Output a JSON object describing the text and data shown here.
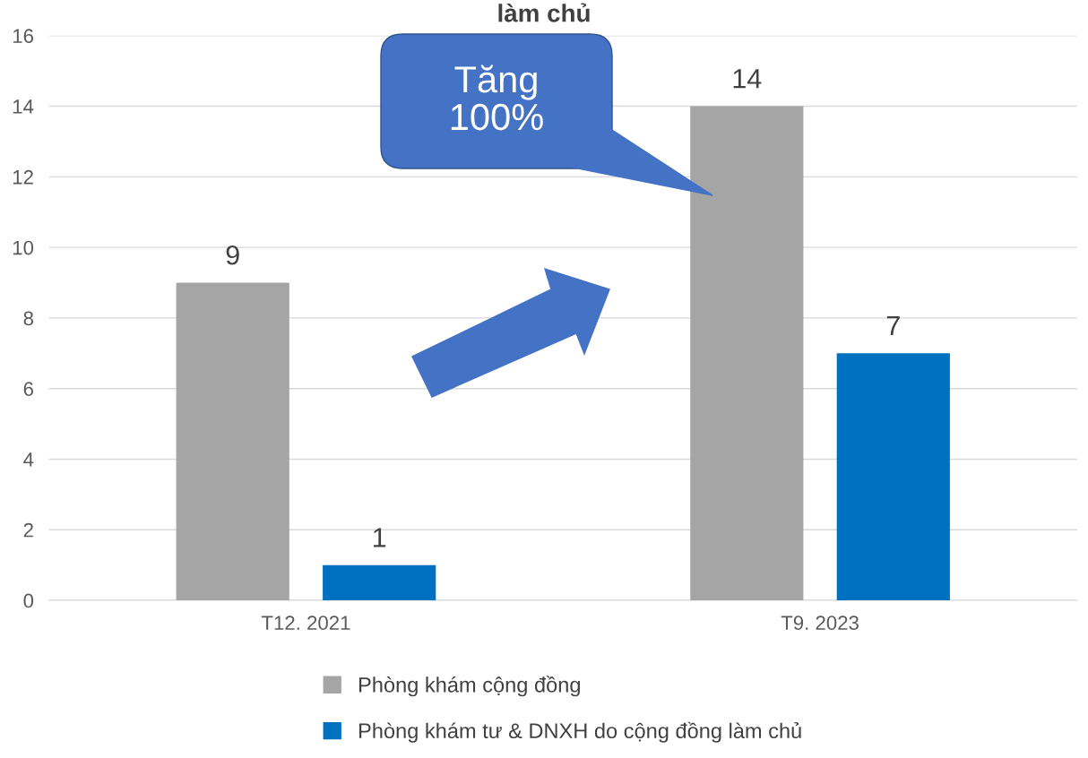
{
  "chart_data": {
    "type": "bar",
    "title": "làm chủ",
    "categories": [
      "T12. 2021",
      "T9. 2023"
    ],
    "series": [
      {
        "name": "Phòng khám cộng đồng",
        "color": "#a5a5a5",
        "values": [
          9,
          14
        ]
      },
      {
        "name": "Phòng khám tư & DNXH do cộng đồng làm chủ",
        "color": "#0070c0",
        "values": [
          1,
          7
        ]
      }
    ],
    "ylim": [
      0,
      16
    ],
    "yticks": [
      0,
      2,
      4,
      6,
      8,
      10,
      12,
      14,
      16
    ],
    "grid": "y",
    "legend": "bottom",
    "data_labels": true,
    "annotations": [
      "Tăng 100%"
    ]
  }
}
